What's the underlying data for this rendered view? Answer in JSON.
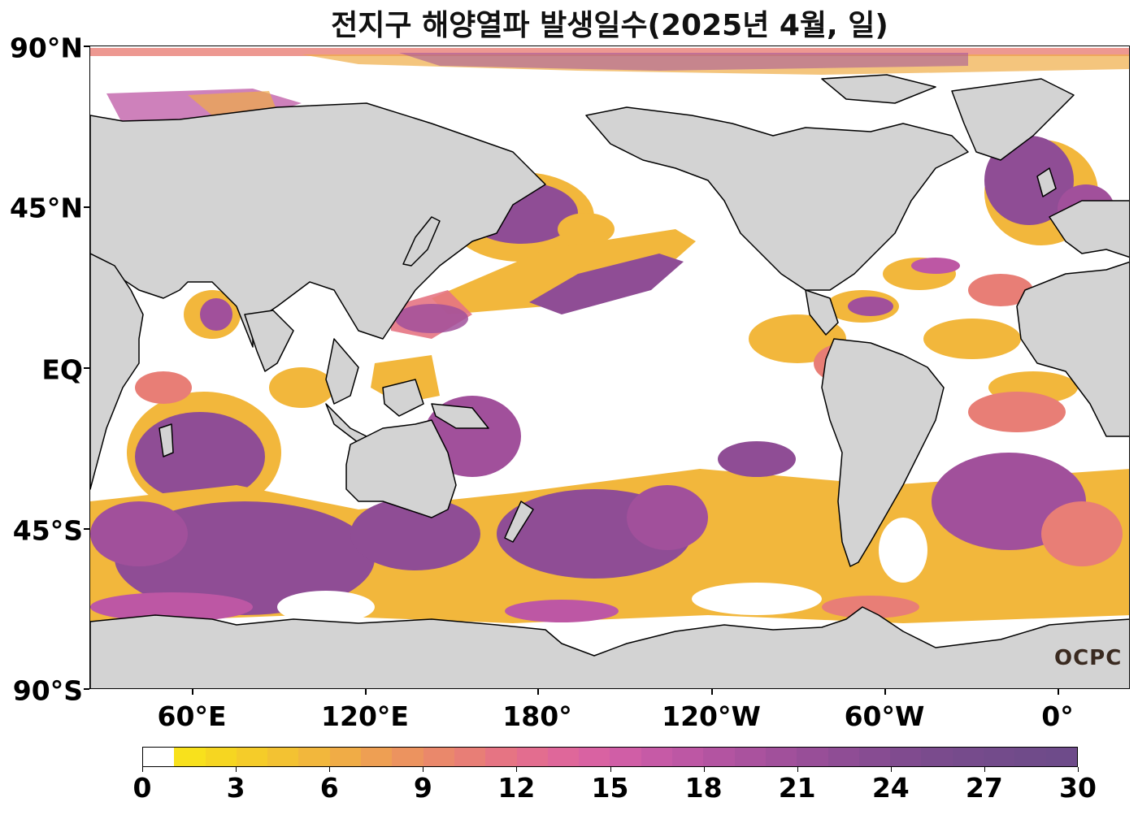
{
  "title": "전지구 해양열파 발생일수(2025년 4월, 일)",
  "lat_labels": [
    "90°N",
    "45°N",
    "EQ",
    "45°S",
    "90°S"
  ],
  "lon_labels": [
    "60°E",
    "120°E",
    "180°",
    "120°W",
    "60°W",
    "0°"
  ],
  "colorbar": {
    "min": 0,
    "max": 30,
    "tick_labels": [
      "0",
      "3",
      "6",
      "9",
      "12",
      "15",
      "18",
      "21",
      "24",
      "27",
      "30"
    ],
    "colors": [
      "#ffffff",
      "#f8e11c",
      "#f6d621",
      "#f5cc29",
      "#f3c232",
      "#f2b73c",
      "#f0ac46",
      "#ee9f53",
      "#ec935f",
      "#ea886b",
      "#e87e76",
      "#e67483",
      "#e36d8f",
      "#df679a",
      "#d962a2",
      "#d05ea6",
      "#c65aa6",
      "#bd57a4",
      "#b354a1",
      "#aa529e",
      "#a1509b",
      "#984e98",
      "#8f4d95",
      "#874c92",
      "#804b8f",
      "#7a4b8d",
      "#764b8c",
      "#734b8b",
      "#704b8a",
      "#6e4b8a"
    ]
  },
  "colors": {
    "land": "#d3d3d3",
    "ocean": "#ffffff",
    "coast": "#000000"
  },
  "logo_text": "OCPC"
}
